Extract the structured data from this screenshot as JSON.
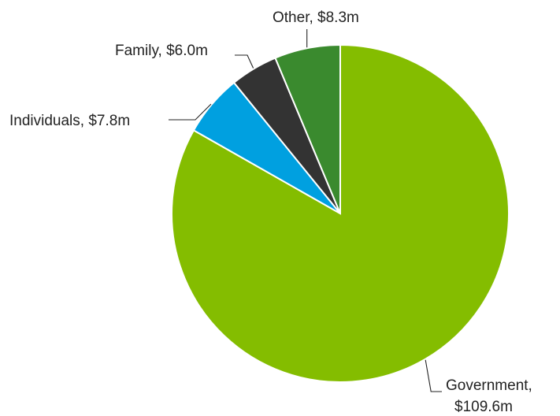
{
  "chart_data": {
    "type": "pie",
    "title": "",
    "unit": "$m",
    "start": "12 o'clock",
    "direction": "clockwise",
    "legend": "none (labels beside slices)",
    "slices": [
      {
        "name": "Government",
        "value": 109.6,
        "label_line1": "Government,",
        "label_line2": "$109.6m",
        "color": "#84bd00"
      },
      {
        "name": "Individuals",
        "value": 7.8,
        "label_line1": "Individuals, $7.8m",
        "label_line2": "",
        "color": "#00a0e0"
      },
      {
        "name": "Family",
        "value": 6.0,
        "label_line1": "Family, $6.0m",
        "label_line2": "",
        "color": "#333333"
      },
      {
        "name": "Other",
        "value": 8.3,
        "label_line1": "Other, $8.3m",
        "label_line2": "",
        "color": "#3a8a2e"
      }
    ]
  }
}
